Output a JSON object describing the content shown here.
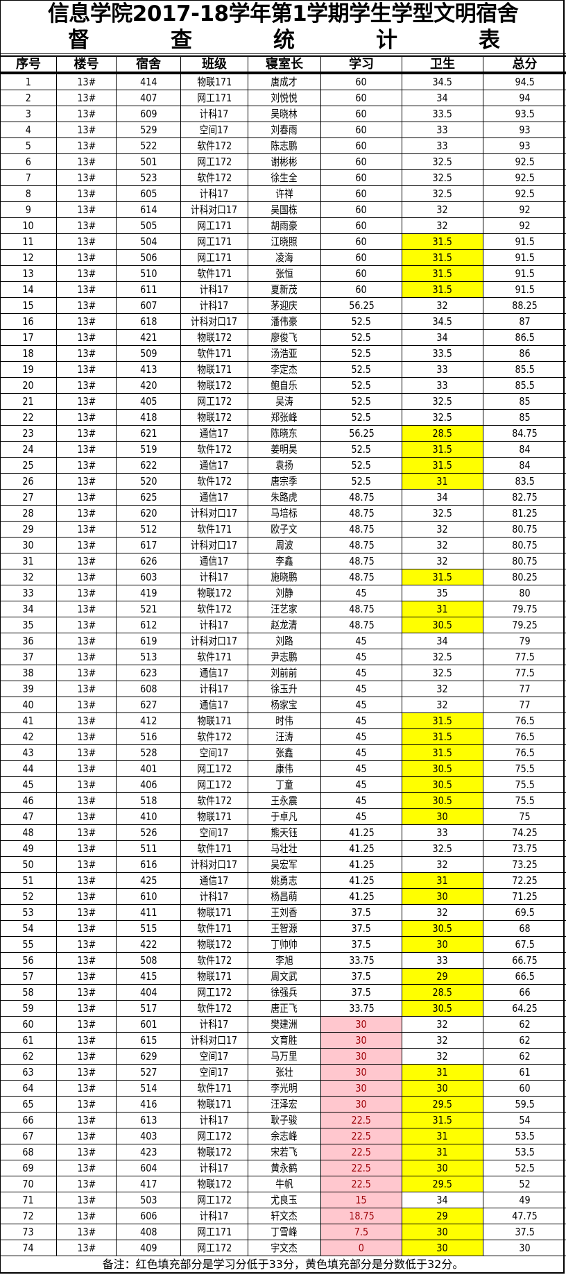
{
  "title": {
    "line1": "信息学院2017-18学年第1学期学生学型文明宿舍",
    "line2": [
      "督",
      "查",
      "统",
      "计",
      "表"
    ]
  },
  "columns": [
    "序号",
    "楼号",
    "宿舍",
    "班级",
    "寝室长",
    "学习",
    "卫生",
    "总分"
  ],
  "highlight_colors": {
    "study_low_fill": "#FFC7CE",
    "study_low_text": "#9C0006",
    "hygiene_low_fill": "#FFFF00"
  },
  "thresholds": {
    "study": 33,
    "hygiene": 32
  },
  "rows": [
    [
      "1",
      "13#",
      "414",
      "物联171",
      "唐成才",
      "60",
      "34.5",
      "94.5"
    ],
    [
      "2",
      "13#",
      "407",
      "网工171",
      "刘悦悦",
      "60",
      "34",
      "94"
    ],
    [
      "3",
      "13#",
      "609",
      "计科17",
      "吴晓林",
      "60",
      "33.5",
      "93.5"
    ],
    [
      "4",
      "13#",
      "529",
      "空间17",
      "刘春雨",
      "60",
      "33",
      "93"
    ],
    [
      "5",
      "13#",
      "522",
      "软件172",
      "陈志鹏",
      "60",
      "33",
      "93"
    ],
    [
      "6",
      "13#",
      "501",
      "网工172",
      "谢彬彬",
      "60",
      "32.5",
      "92.5"
    ],
    [
      "7",
      "13#",
      "523",
      "软件172",
      "徐生全",
      "60",
      "32.5",
      "92.5"
    ],
    [
      "8",
      "13#",
      "605",
      "计科17",
      "许祥",
      "60",
      "32.5",
      "92.5"
    ],
    [
      "9",
      "13#",
      "614",
      "计科对口17",
      "吴国栋",
      "60",
      "32",
      "92"
    ],
    [
      "10",
      "13#",
      "505",
      "网工171",
      "胡雨豪",
      "60",
      "32",
      "92"
    ],
    [
      "11",
      "13#",
      "504",
      "网工171",
      "江晓照",
      "60",
      "31.5",
      "91.5"
    ],
    [
      "12",
      "13#",
      "506",
      "网工171",
      "凌海",
      "60",
      "31.5",
      "91.5"
    ],
    [
      "13",
      "13#",
      "510",
      "软件171",
      "张恒",
      "60",
      "31.5",
      "91.5"
    ],
    [
      "14",
      "13#",
      "611",
      "计科17",
      "夏新茂",
      "60",
      "31.5",
      "91.5"
    ],
    [
      "15",
      "13#",
      "607",
      "计科17",
      "茅迎庆",
      "56.25",
      "32",
      "88.25"
    ],
    [
      "16",
      "13#",
      "618",
      "计科对口17",
      "潘伟豪",
      "52.5",
      "34.5",
      "87"
    ],
    [
      "17",
      "13#",
      "421",
      "物联172",
      "廖俊飞",
      "52.5",
      "34",
      "86.5"
    ],
    [
      "18",
      "13#",
      "509",
      "软件171",
      "汤浩亚",
      "52.5",
      "33.5",
      "86"
    ],
    [
      "19",
      "13#",
      "413",
      "物联171",
      "李定杰",
      "52.5",
      "33",
      "85.5"
    ],
    [
      "20",
      "13#",
      "420",
      "物联172",
      "鲍自乐",
      "52.5",
      "33",
      "85.5"
    ],
    [
      "21",
      "13#",
      "405",
      "网工172",
      "吴涛",
      "52.5",
      "32.5",
      "85"
    ],
    [
      "22",
      "13#",
      "418",
      "物联172",
      "郑张峰",
      "52.5",
      "32.5",
      "85"
    ],
    [
      "23",
      "13#",
      "621",
      "通信17",
      "陈晓东",
      "56.25",
      "28.5",
      "84.75"
    ],
    [
      "24",
      "13#",
      "519",
      "软件172",
      "姜明昊",
      "52.5",
      "31.5",
      "84"
    ],
    [
      "25",
      "13#",
      "622",
      "通信17",
      "袁扬",
      "52.5",
      "31.5",
      "84"
    ],
    [
      "26",
      "13#",
      "520",
      "软件172",
      "唐宗季",
      "52.5",
      "31",
      "83.5"
    ],
    [
      "27",
      "13#",
      "625",
      "通信17",
      "朱路虎",
      "48.75",
      "34",
      "82.75"
    ],
    [
      "28",
      "13#",
      "620",
      "计科对口17",
      "马培标",
      "48.75",
      "32.5",
      "81.25"
    ],
    [
      "29",
      "13#",
      "512",
      "软件171",
      "欧子文",
      "48.75",
      "32",
      "80.75"
    ],
    [
      "30",
      "13#",
      "617",
      "计科对口17",
      "周波",
      "48.75",
      "32",
      "80.75"
    ],
    [
      "31",
      "13#",
      "626",
      "通信17",
      "李鑫",
      "48.75",
      "32",
      "80.75"
    ],
    [
      "32",
      "13#",
      "603",
      "计科17",
      "施晓鹏",
      "48.75",
      "31.5",
      "80.25"
    ],
    [
      "33",
      "13#",
      "419",
      "物联172",
      "刘静",
      "45",
      "35",
      "80"
    ],
    [
      "34",
      "13#",
      "521",
      "软件172",
      "汪艺家",
      "48.75",
      "31",
      "79.75"
    ],
    [
      "35",
      "13#",
      "612",
      "计科17",
      "赵龙清",
      "48.75",
      "30.5",
      "79.25"
    ],
    [
      "36",
      "13#",
      "619",
      "计科对口17",
      "刘路",
      "45",
      "34",
      "79"
    ],
    [
      "37",
      "13#",
      "513",
      "软件171",
      "尹志鹏",
      "45",
      "32.5",
      "77.5"
    ],
    [
      "38",
      "13#",
      "623",
      "通信17",
      "刘前前",
      "45",
      "32.5",
      "77.5"
    ],
    [
      "39",
      "13#",
      "608",
      "计科17",
      "徐玉升",
      "45",
      "32",
      "77"
    ],
    [
      "40",
      "13#",
      "627",
      "通信17",
      "杨家宝",
      "45",
      "32",
      "77"
    ],
    [
      "41",
      "13#",
      "412",
      "物联171",
      "时伟",
      "45",
      "31.5",
      "76.5"
    ],
    [
      "42",
      "13#",
      "516",
      "软件172",
      "汪涛",
      "45",
      "31.5",
      "76.5"
    ],
    [
      "43",
      "13#",
      "528",
      "空间17",
      "张鑫",
      "45",
      "31.5",
      "76.5"
    ],
    [
      "44",
      "13#",
      "401",
      "网工172",
      "康伟",
      "45",
      "30.5",
      "75.5"
    ],
    [
      "45",
      "13#",
      "406",
      "网工172",
      "丁童",
      "45",
      "30.5",
      "75.5"
    ],
    [
      "46",
      "13#",
      "518",
      "软件172",
      "王永震",
      "45",
      "30.5",
      "75.5"
    ],
    [
      "47",
      "13#",
      "410",
      "物联171",
      "于卓凡",
      "45",
      "30",
      "75"
    ],
    [
      "48",
      "13#",
      "526",
      "空间17",
      "熊天钰",
      "41.25",
      "33",
      "74.25"
    ],
    [
      "49",
      "13#",
      "511",
      "软件171",
      "马壮壮",
      "41.25",
      "32.5",
      "73.75"
    ],
    [
      "50",
      "13#",
      "616",
      "计科对口17",
      "吴宏军",
      "41.25",
      "32",
      "73.25"
    ],
    [
      "51",
      "13#",
      "425",
      "通信17",
      "姚勇志",
      "41.25",
      "31",
      "72.25"
    ],
    [
      "52",
      "13#",
      "610",
      "计科17",
      "杨昌萌",
      "41.25",
      "30",
      "71.25"
    ],
    [
      "53",
      "13#",
      "411",
      "物联171",
      "王刘香",
      "37.5",
      "32",
      "69.5"
    ],
    [
      "54",
      "13#",
      "515",
      "软件171",
      "王智源",
      "37.5",
      "30.5",
      "68"
    ],
    [
      "55",
      "13#",
      "422",
      "物联172",
      "丁帅帅",
      "37.5",
      "30",
      "67.5"
    ],
    [
      "56",
      "13#",
      "508",
      "软件172",
      "李旭",
      "33.75",
      "33",
      "66.75"
    ],
    [
      "57",
      "13#",
      "415",
      "物联171",
      "周文武",
      "37.5",
      "29",
      "66.5"
    ],
    [
      "58",
      "13#",
      "404",
      "网工172",
      "徐强兵",
      "37.5",
      "28.5",
      "66"
    ],
    [
      "59",
      "13#",
      "517",
      "软件172",
      "唐正飞",
      "33.75",
      "30.5",
      "64.25"
    ],
    [
      "60",
      "13#",
      "601",
      "计科17",
      "樊建洲",
      "30",
      "32",
      "62"
    ],
    [
      "61",
      "13#",
      "615",
      "计科对口17",
      "文育胜",
      "30",
      "32",
      "62"
    ],
    [
      "62",
      "13#",
      "629",
      "空间17",
      "马万里",
      "30",
      "32",
      "62"
    ],
    [
      "63",
      "13#",
      "527",
      "空间17",
      "张壮",
      "30",
      "31",
      "61"
    ],
    [
      "64",
      "13#",
      "514",
      "软件171",
      "李光明",
      "30",
      "30",
      "60"
    ],
    [
      "65",
      "13#",
      "416",
      "物联171",
      "汪泽宏",
      "30",
      "29.5",
      "59.5"
    ],
    [
      "66",
      "13#",
      "613",
      "计科17",
      "耿子骏",
      "22.5",
      "31.5",
      "54"
    ],
    [
      "67",
      "13#",
      "403",
      "网工172",
      "余志峰",
      "22.5",
      "31",
      "53.5"
    ],
    [
      "68",
      "13#",
      "423",
      "物联172",
      "宋若飞",
      "22.5",
      "31",
      "53.5"
    ],
    [
      "69",
      "13#",
      "604",
      "计科17",
      "黄永鹤",
      "22.5",
      "30",
      "52.5"
    ],
    [
      "70",
      "13#",
      "417",
      "物联172",
      "牛帆",
      "22.5",
      "29.5",
      "52"
    ],
    [
      "71",
      "13#",
      "503",
      "网工172",
      "尤良玉",
      "15",
      "34",
      "49"
    ],
    [
      "72",
      "13#",
      "606",
      "计科17",
      "轩文杰",
      "18.75",
      "29",
      "47.75"
    ],
    [
      "73",
      "13#",
      "408",
      "网工171",
      "丁雪峰",
      "7.5",
      "30",
      "37.5"
    ],
    [
      "74",
      "13#",
      "409",
      "网工172",
      "宇文杰",
      "0",
      "30",
      "30"
    ]
  ],
  "note": "备注：红色填充部分是学习分低于33分，黄色填充部分是分数低于32分。"
}
